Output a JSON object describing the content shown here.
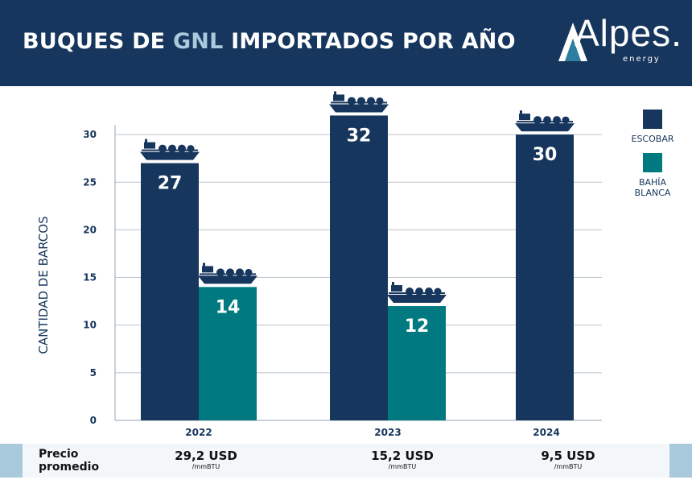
{
  "header": {
    "title_pre": "BUQUES DE ",
    "title_hl": "GNL",
    "title_post": " IMPORTADOS POR AÑO",
    "logo": "Alpes.",
    "logo_sub": "energy"
  },
  "colors": {
    "escobar": "#17365d",
    "bahia": "#007a80",
    "header": "#17365d",
    "accent": "#a9c9dd"
  },
  "chart_data": {
    "type": "bar",
    "title": "BUQUES DE GNL IMPORTADOS POR AÑO",
    "categories": [
      "2022",
      "2023",
      "2024"
    ],
    "series": [
      {
        "name": "ESCOBAR",
        "values": [
          27,
          32,
          30
        ]
      },
      {
        "name": "BAHÍA BLANCA",
        "values": [
          14,
          12,
          null
        ]
      }
    ],
    "ylabel": "CANTIDAD DE BARCOS",
    "xlabel": "",
    "ylim": [
      0,
      32
    ],
    "yticks": [
      0,
      5,
      10,
      15,
      20,
      25,
      30
    ],
    "grid": true,
    "legend": "right",
    "icons": "ship-icon above each bar"
  },
  "legend": {
    "escobar": "ESCOBAR",
    "bahia_1": "BAHÍA",
    "bahia_2": "BLANCA"
  },
  "footer": {
    "label_1": "Precio",
    "label_2": "promedio",
    "prices": [
      {
        "value": "29,2 USD",
        "unit": "/mmBTU"
      },
      {
        "value": "15,2 USD",
        "unit": "/mmBTU"
      },
      {
        "value": "9,5 USD",
        "unit": "/mmBTU"
      }
    ]
  }
}
